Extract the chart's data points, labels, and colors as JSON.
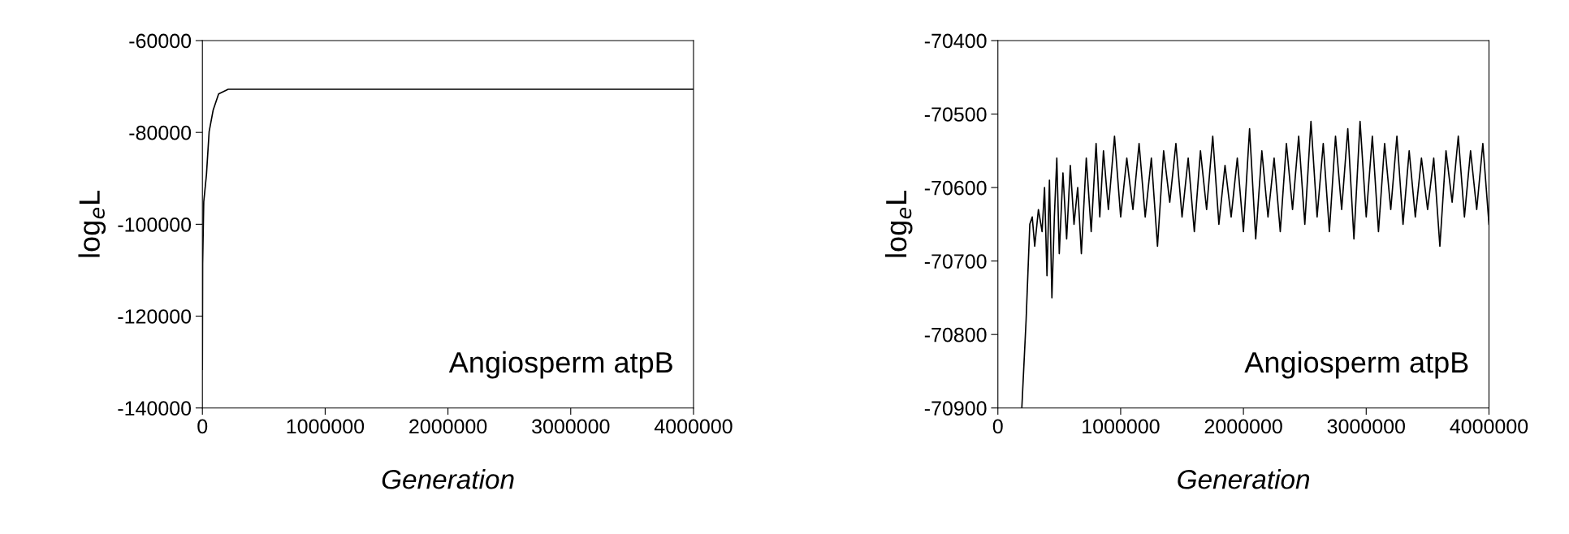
{
  "chart_data": [
    {
      "type": "line",
      "xlabel": "Generation",
      "ylabel": "log$_{e}$L",
      "annotations": [
        "Angiosperm atpB"
      ],
      "x": [
        0,
        2000,
        11000,
        33000,
        55000,
        88000,
        132000,
        210000,
        400000,
        800000,
        1200000,
        1600000,
        2000000,
        2400000,
        2800000,
        3200000,
        3600000,
        4000000
      ],
      "series": [
        {
          "color": "#000000",
          "values": [
            -131600,
            -108600,
            -95100,
            -89200,
            -79800,
            -75100,
            -71600,
            -70600,
            -70600,
            -70600,
            -70600,
            -70600,
            -70600,
            -70600,
            -70600,
            -70600,
            -70600,
            -70600
          ]
        }
      ],
      "xlim": [
        0,
        4000000
      ],
      "xticks": [
        0,
        1000000,
        2000000,
        3000000,
        4000000
      ],
      "ylim": [
        -140000,
        -60000
      ],
      "yticks": [
        -140000,
        -120000,
        -100000,
        -80000,
        -60000
      ],
      "grid": false,
      "legend": false
    },
    {
      "type": "line",
      "xlabel": "Generation",
      "ylabel": "log$_{e}$L",
      "annotations": [
        "Angiosperm atpB"
      ],
      "x": [
        195000,
        230000,
        260000,
        280000,
        300000,
        330000,
        360000,
        380000,
        400000,
        420000,
        440000,
        460000,
        480000,
        500000,
        530000,
        560000,
        590000,
        620000,
        650000,
        680000,
        720000,
        760000,
        800000,
        830000,
        860000,
        900000,
        950000,
        1000000,
        1050000,
        1100000,
        1150000,
        1200000,
        1250000,
        1300000,
        1350000,
        1400000,
        1450000,
        1500000,
        1550000,
        1600000,
        1650000,
        1700000,
        1750000,
        1800000,
        1850000,
        1900000,
        1950000,
        2000000,
        2050000,
        2100000,
        2150000,
        2200000,
        2250000,
        2300000,
        2350000,
        2400000,
        2450000,
        2500000,
        2550000,
        2600000,
        2650000,
        2700000,
        2750000,
        2800000,
        2850000,
        2900000,
        2950000,
        3000000,
        3050000,
        3100000,
        3150000,
        3200000,
        3250000,
        3300000,
        3350000,
        3400000,
        3450000,
        3500000,
        3550000,
        3600000,
        3650000,
        3700000,
        3750000,
        3800000,
        3850000,
        3900000,
        3950000,
        4000000
      ],
      "series": [
        {
          "color": "#000000",
          "values": [
            -70900,
            -70780,
            -70650,
            -70640,
            -70680,
            -70630,
            -70660,
            -70600,
            -70720,
            -70590,
            -70750,
            -70640,
            -70560,
            -70690,
            -70580,
            -70670,
            -70570,
            -70650,
            -70600,
            -70690,
            -70560,
            -70660,
            -70540,
            -70640,
            -70550,
            -70630,
            -70530,
            -70640,
            -70560,
            -70630,
            -70540,
            -70640,
            -70560,
            -70680,
            -70550,
            -70620,
            -70540,
            -70640,
            -70560,
            -70660,
            -70550,
            -70630,
            -70530,
            -70650,
            -70570,
            -70640,
            -70560,
            -70660,
            -70520,
            -70670,
            -70550,
            -70640,
            -70560,
            -70660,
            -70540,
            -70630,
            -70530,
            -70650,
            -70510,
            -70640,
            -70540,
            -70660,
            -70530,
            -70630,
            -70520,
            -70670,
            -70510,
            -70640,
            -70530,
            -70660,
            -70540,
            -70630,
            -70530,
            -70650,
            -70550,
            -70640,
            -70560,
            -70630,
            -70560,
            -70680,
            -70550,
            -70620,
            -70530,
            -70640,
            -70550,
            -70630,
            -70540,
            -70650
          ]
        }
      ],
      "xlim": [
        0,
        4000000
      ],
      "xticks": [
        0,
        1000000,
        2000000,
        3000000,
        4000000
      ],
      "ylim": [
        -70900,
        -70400
      ],
      "yticks": [
        -70900,
        -70800,
        -70700,
        -70600,
        -70500,
        -70400
      ],
      "grid": false,
      "legend": false
    }
  ]
}
